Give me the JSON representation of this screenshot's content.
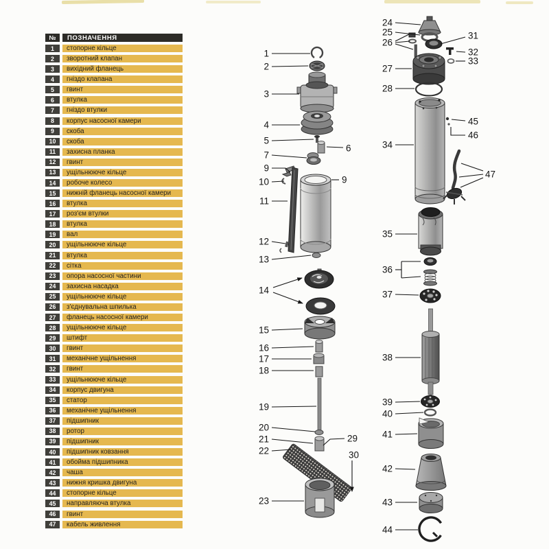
{
  "table": {
    "header": {
      "no": "№",
      "name": "ПОЗНАЧЕННЯ"
    },
    "rows": [
      {
        "no": "1",
        "name": "стопорне кільце"
      },
      {
        "no": "2",
        "name": "зворотний клапан"
      },
      {
        "no": "3",
        "name": "вихідний фланець"
      },
      {
        "no": "4",
        "name": "гніздо клапана"
      },
      {
        "no": "5",
        "name": "гвинт"
      },
      {
        "no": "6",
        "name": "втулка"
      },
      {
        "no": "7",
        "name": "гніздо втулки"
      },
      {
        "no": "8",
        "name": "корпус насосної камери"
      },
      {
        "no": "9",
        "name": "скоба"
      },
      {
        "no": "10",
        "name": "скоба"
      },
      {
        "no": "11",
        "name": "захисна планка"
      },
      {
        "no": "12",
        "name": "гвинт"
      },
      {
        "no": "13",
        "name": "ущільнююче кільце"
      },
      {
        "no": "14",
        "name": "робоче колесо"
      },
      {
        "no": "15",
        "name": "нижній фланець насосної камери"
      },
      {
        "no": "16",
        "name": "втулка"
      },
      {
        "no": "17",
        "name": "роз'єм втулки"
      },
      {
        "no": "18",
        "name": "втулка"
      },
      {
        "no": "19",
        "name": "вал"
      },
      {
        "no": "20",
        "name": "ущільнююче кільце"
      },
      {
        "no": "21",
        "name": "втулка"
      },
      {
        "no": "22",
        "name": "сітка"
      },
      {
        "no": "23",
        "name": "опора насосної частини"
      },
      {
        "no": "24",
        "name": "захисна насадка"
      },
      {
        "no": "25",
        "name": "ущільнююче кільце"
      },
      {
        "no": "26",
        "name": "з'єднувальна шпилька"
      },
      {
        "no": "27",
        "name": "фланець насосної камери"
      },
      {
        "no": "28",
        "name": "ущільнююче кільце"
      },
      {
        "no": "29",
        "name": "штифт"
      },
      {
        "no": "30",
        "name": "гвинт"
      },
      {
        "no": "31",
        "name": "механічне ущільнення"
      },
      {
        "no": "32",
        "name": "гвинт"
      },
      {
        "no": "33",
        "name": "ущільнююче кільце"
      },
      {
        "no": "34",
        "name": "корпус двигуна"
      },
      {
        "no": "35",
        "name": "статор"
      },
      {
        "no": "36",
        "name": "механічне ущільнення"
      },
      {
        "no": "37",
        "name": "підшипник"
      },
      {
        "no": "38",
        "name": "ротор"
      },
      {
        "no": "39",
        "name": "підшипник"
      },
      {
        "no": "40",
        "name": "підшипник ковзання"
      },
      {
        "no": "41",
        "name": "обойма підшипника"
      },
      {
        "no": "42",
        "name": "чаша"
      },
      {
        "no": "43",
        "name": "нижня кришка двигуна"
      },
      {
        "no": "44",
        "name": "стопорне кільце"
      },
      {
        "no": "45",
        "name": "направляюча втулка"
      },
      {
        "no": "46",
        "name": "гвинт"
      },
      {
        "no": "47",
        "name": "кабель живлення"
      }
    ]
  },
  "diagram": {
    "callouts": {
      "c1": "1",
      "c2": "2",
      "c3": "3",
      "c4": "4",
      "c5": "5",
      "c6": "6",
      "c7": "7",
      "c8": "9",
      "c9": "9",
      "c10": "10",
      "c11": "11",
      "c12": "12",
      "c13": "13",
      "c14": "14",
      "c15": "15",
      "c16": "16",
      "c17": "17",
      "c18": "18",
      "c19": "19",
      "c20": "20",
      "c21": "21",
      "c22": "22",
      "c23": "23",
      "c24": "24",
      "c25": "25",
      "c26": "26",
      "c27": "27",
      "c28": "28",
      "c29": "29",
      "c30": "30",
      "c31": "31",
      "c32": "32",
      "c33": "33",
      "c34": "34",
      "c35": "35",
      "c36": "36",
      "c37": "37",
      "c38": "38",
      "c39": "39",
      "c40": "40",
      "c41": "41",
      "c42": "42",
      "c43": "43",
      "c44": "44",
      "c45": "45",
      "c46": "46",
      "c47": "47"
    }
  },
  "colors": {
    "row_yellow": "#e5b84f",
    "header_dark": "#2c2b27",
    "number_cell": "#403f3a",
    "ink": "#141414"
  }
}
